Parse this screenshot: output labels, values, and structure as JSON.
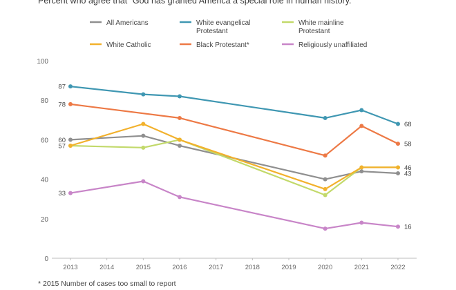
{
  "subtitle": "Percent who agree that “God has granted America a special role in human history.”",
  "footnote": "* 2015 Number of cases too small to report",
  "chart_data": {
    "type": "line",
    "x": [
      2013,
      2014,
      2015,
      2016,
      2017,
      2018,
      2019,
      2020,
      2021,
      2022
    ],
    "ylim": [
      0,
      100
    ],
    "yticks": [
      0,
      20,
      40,
      60,
      80,
      100
    ],
    "grid": false,
    "legend_position": "top",
    "series": [
      {
        "name": "All Americans",
        "color": "#8f8f8f",
        "legend_lines": [
          "All Americans"
        ],
        "points": [
          [
            2013,
            60
          ],
          [
            2015,
            62
          ],
          [
            2016,
            57
          ],
          [
            2020,
            40
          ],
          [
            2021,
            44
          ],
          [
            2022,
            43
          ]
        ],
        "start_label": "60",
        "end_label": "43"
      },
      {
        "name": "White evangelical Protestant",
        "color": "#3f97b2",
        "legend_lines": [
          "White evangelical",
          "Protestant"
        ],
        "points": [
          [
            2013,
            87
          ],
          [
            2015,
            83
          ],
          [
            2016,
            82
          ],
          [
            2020,
            71
          ],
          [
            2021,
            75
          ],
          [
            2022,
            68
          ]
        ],
        "start_label": "87",
        "end_label": "68"
      },
      {
        "name": "White mainline Protestant",
        "color": "#c2d96a",
        "legend_lines": [
          "White mainline",
          "Protestant"
        ],
        "points": [
          [
            2013,
            57
          ],
          [
            2015,
            56
          ],
          [
            2016,
            60
          ],
          [
            2020,
            32
          ],
          [
            2021,
            46
          ],
          [
            2022,
            46
          ]
        ],
        "start_label": "",
        "end_label": ""
      },
      {
        "name": "White Catholic",
        "color": "#f2b12c",
        "legend_lines": [
          "White Catholic"
        ],
        "points": [
          [
            2013,
            57
          ],
          [
            2015,
            68
          ],
          [
            2016,
            60
          ],
          [
            2020,
            35
          ],
          [
            2021,
            46
          ],
          [
            2022,
            46
          ]
        ],
        "start_label": "57",
        "end_label": "46"
      },
      {
        "name": "Black Protestant*",
        "color": "#ed7945",
        "legend_lines": [
          "Black Protestant*"
        ],
        "points": [
          [
            2013,
            78
          ],
          [
            2016,
            71
          ],
          [
            2020,
            52
          ],
          [
            2021,
            67
          ],
          [
            2022,
            58
          ]
        ],
        "start_label": "78",
        "end_label": "58"
      },
      {
        "name": "Religiously unaffiliated",
        "color": "#c885c8",
        "legend_lines": [
          "Religiously unaffiliated"
        ],
        "points": [
          [
            2013,
            33
          ],
          [
            2015,
            39
          ],
          [
            2016,
            31
          ],
          [
            2020,
            15
          ],
          [
            2021,
            18
          ],
          [
            2022,
            16
          ]
        ],
        "start_label": "33",
        "end_label": "16"
      }
    ]
  }
}
